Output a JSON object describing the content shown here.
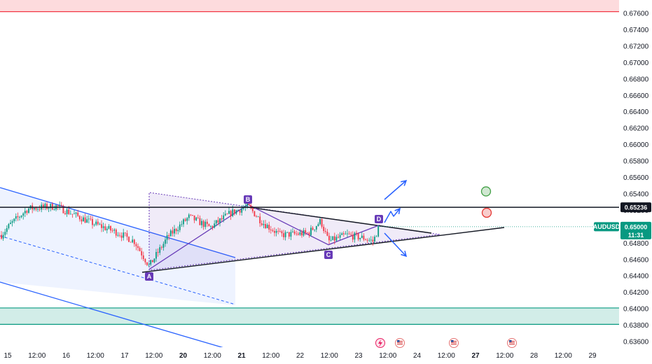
{
  "chart_data": {
    "type": "candlestick",
    "symbol": "AUDUSD",
    "y_axis": {
      "ylim": [
        0.6346,
        0.6777
      ],
      "ticks": [
        "0.67600",
        "0.67400",
        "0.67200",
        "0.67000",
        "0.66800",
        "0.66600",
        "0.66400",
        "0.66200",
        "0.66000",
        "0.65800",
        "0.65600",
        "0.65400",
        "0.65200",
        "0.65000",
        "0.64800",
        "0.64600",
        "0.64400",
        "0.64200",
        "0.64000",
        "0.63800",
        "0.63600"
      ]
    },
    "x_axis": {
      "ticks": [
        "15",
        "12:00",
        "16",
        "12:00",
        "17",
        "12:00",
        "20",
        "12:00",
        "21",
        "12:00",
        "22",
        "12:00",
        "23",
        "12:00",
        "24",
        "12:00",
        "27",
        "12:00",
        "28",
        "12:00",
        "29"
      ],
      "bold_ticks": [
        "20",
        "21",
        "27"
      ]
    },
    "current_price": {
      "label": "0.65000",
      "countdown": "11:31",
      "value": 0.65,
      "color": "#089981"
    },
    "resistance_level": {
      "label": "0.65236",
      "value": 0.65236
    },
    "zones": [
      {
        "name": "supply-zone",
        "from": 0.6762,
        "to": 0.6777,
        "color": "#f23645"
      },
      {
        "name": "demand-zone",
        "from": 0.6381,
        "to": 0.6401,
        "color": "#089981"
      }
    ],
    "pattern_points": [
      {
        "label": "A",
        "price": 0.6448
      },
      {
        "label": "B",
        "price": 0.6527
      },
      {
        "label": "C",
        "price": 0.6478
      },
      {
        "label": "D",
        "price": 0.6502
      }
    ],
    "indicators": {
      "take_profit": {
        "price": 0.6543,
        "color": "#43a047"
      },
      "stop_loss": {
        "price": 0.6517,
        "color": "#e53935"
      }
    },
    "colors": {
      "up": "#089981",
      "down": "#f23645",
      "channel": "#2962ff",
      "pattern": "#673ab7",
      "arrow": "#2962ff"
    }
  }
}
